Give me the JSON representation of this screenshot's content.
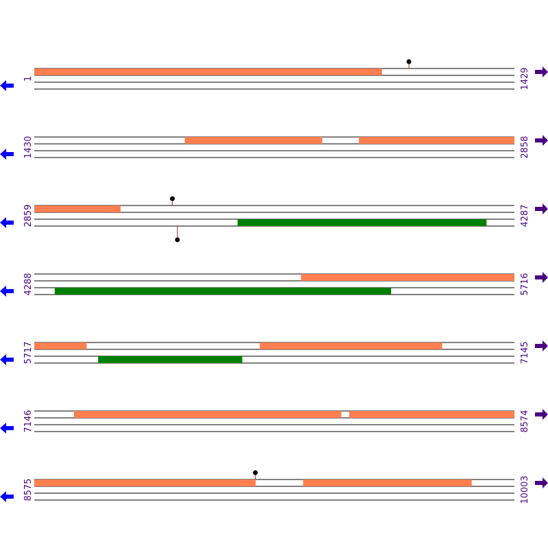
{
  "colors": {
    "line": "#000000",
    "forward_feature": "#ff7f50",
    "reverse_feature": "#008000",
    "position_label": "#4b0082",
    "forward_arrow": "#4b0082",
    "reverse_arrow": "#0000ff",
    "marker_stem": "#b22222",
    "marker_head": "#000000"
  },
  "icons": {
    "forward": "arrow-right-icon",
    "reverse": "arrow-left-icon"
  },
  "sequence_length": 10003,
  "rows": [
    {
      "start": "1",
      "end": "1429",
      "s": 1,
      "e": 1429
    },
    {
      "start": "1430",
      "end": "2858",
      "s": 1430,
      "e": 2858
    },
    {
      "start": "2859",
      "end": "4287",
      "s": 2859,
      "e": 4287
    },
    {
      "start": "4288",
      "end": "5716",
      "s": 4288,
      "e": 5716
    },
    {
      "start": "5717",
      "end": "7145",
      "s": 5717,
      "e": 7145
    },
    {
      "start": "7146",
      "end": "8574",
      "s": 7146,
      "e": 8574
    },
    {
      "start": "8575",
      "end": "10003",
      "s": 8575,
      "e": 10003
    }
  ],
  "features": [
    {
      "strand": "forward",
      "start": 1,
      "end": 1035
    },
    {
      "strand": "forward",
      "start": 1878,
      "end": 2286
    },
    {
      "strand": "forward",
      "start": 2396,
      "end": 3115
    },
    {
      "strand": "reverse",
      "start": 3464,
      "end": 4204
    },
    {
      "strand": "forward",
      "start": 5082,
      "end": 5872
    },
    {
      "strand": "reverse",
      "start": 4349,
      "end": 5349
    },
    {
      "strand": "reverse",
      "start": 5907,
      "end": 6335
    },
    {
      "strand": "forward",
      "start": 6388,
      "end": 6930
    },
    {
      "strand": "forward",
      "start": 7264,
      "end": 8059
    },
    {
      "strand": "forward",
      "start": 8083,
      "end": 9233
    },
    {
      "strand": "forward",
      "start": 9375,
      "end": 9876
    }
  ],
  "markers": [
    {
      "strand": "forward",
      "position": 1116
    },
    {
      "strand": "forward",
      "position": 3270
    },
    {
      "strand": "reverse",
      "position": 3285
    },
    {
      "strand": "forward",
      "position": 9233
    }
  ]
}
